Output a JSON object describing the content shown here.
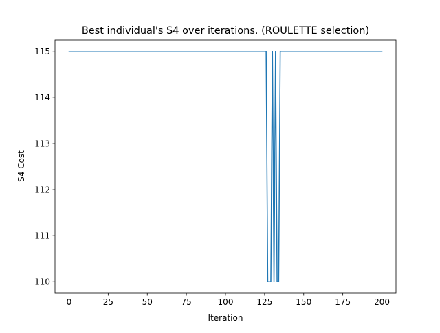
{
  "chart_data": {
    "type": "line",
    "title": "Best individual's S4 over iterations. (ROULETTE selection)",
    "xlabel": "Iteration",
    "ylabel": "S4 Cost",
    "xlim": [
      -9,
      209
    ],
    "ylim": [
      109.75,
      115.25
    ],
    "xticks": [
      0,
      25,
      50,
      75,
      100,
      125,
      150,
      175,
      200
    ],
    "yticks": [
      110,
      111,
      112,
      113,
      114,
      115
    ],
    "grid": false,
    "legend": "none",
    "line_color": "#1f77b4",
    "series": [
      {
        "x": [
          0,
          126,
          127,
          128,
          129,
          130,
          131,
          132,
          133,
          134,
          135,
          200
        ],
        "values": [
          115,
          115,
          110,
          110,
          110,
          115,
          110,
          115,
          110,
          110,
          115,
          115
        ]
      }
    ]
  }
}
